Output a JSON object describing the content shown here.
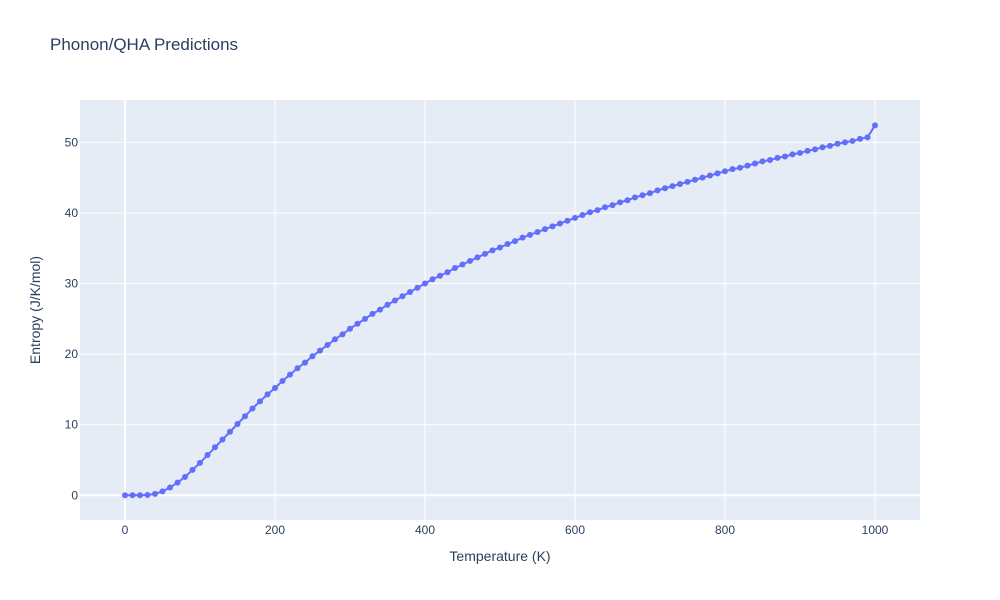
{
  "chart_data": {
    "type": "line",
    "title": "Phonon/QHA Predictions",
    "xlabel": "Temperature (K)",
    "ylabel": "Entropy (J/K/mol)",
    "xlim": [
      -60,
      1060
    ],
    "ylim": [
      -3.5,
      56
    ],
    "xticks": [
      0,
      200,
      400,
      600,
      800,
      1000
    ],
    "yticks": [
      0,
      10,
      20,
      30,
      40,
      50
    ],
    "grid": true,
    "background": "#e5ecf6",
    "series": [
      {
        "color": "#636efa",
        "mode": "lines+markers",
        "x": [
          0,
          10,
          20,
          30,
          40,
          50,
          60,
          70,
          80,
          90,
          100,
          110,
          120,
          130,
          140,
          150,
          160,
          170,
          180,
          190,
          200,
          210,
          220,
          230,
          240,
          250,
          260,
          270,
          280,
          290,
          300,
          310,
          320,
          330,
          340,
          350,
          360,
          370,
          380,
          390,
          400,
          410,
          420,
          430,
          440,
          450,
          460,
          470,
          480,
          490,
          500,
          510,
          520,
          530,
          540,
          550,
          560,
          570,
          580,
          590,
          600,
          610,
          620,
          630,
          640,
          650,
          660,
          670,
          680,
          690,
          700,
          710,
          720,
          730,
          740,
          750,
          760,
          770,
          780,
          790,
          800,
          810,
          820,
          830,
          840,
          850,
          860,
          870,
          880,
          890,
          900,
          910,
          920,
          930,
          940,
          950,
          960,
          970,
          980,
          990,
          1000
        ],
        "y": [
          0,
          0,
          0,
          0.05,
          0.2,
          0.55,
          1.1,
          1.8,
          2.6,
          3.6,
          4.6,
          5.7,
          6.8,
          7.9,
          9.0,
          10.1,
          11.2,
          12.3,
          13.3,
          14.3,
          15.2,
          16.2,
          17.1,
          18.0,
          18.8,
          19.7,
          20.5,
          21.3,
          22.1,
          22.8,
          23.6,
          24.3,
          25.0,
          25.7,
          26.3,
          27.0,
          27.6,
          28.2,
          28.8,
          29.4,
          30.0,
          30.6,
          31.1,
          31.6,
          32.2,
          32.7,
          33.2,
          33.7,
          34.2,
          34.7,
          35.1,
          35.6,
          36.0,
          36.5,
          36.9,
          37.3,
          37.7,
          38.1,
          38.5,
          38.9,
          39.3,
          39.7,
          40.1,
          40.4,
          40.8,
          41.1,
          41.5,
          41.8,
          42.2,
          42.5,
          42.8,
          43.2,
          43.5,
          43.8,
          44.1,
          44.4,
          44.7,
          45.0,
          45.3,
          45.6,
          45.9,
          46.2,
          46.4,
          46.7,
          47.0,
          47.3,
          47.5,
          47.8,
          48.0,
          48.3,
          48.5,
          48.8,
          49.0,
          49.3,
          49.5,
          49.8,
          50.0,
          50.2,
          50.5,
          50.7,
          52.4
        ]
      }
    ]
  }
}
